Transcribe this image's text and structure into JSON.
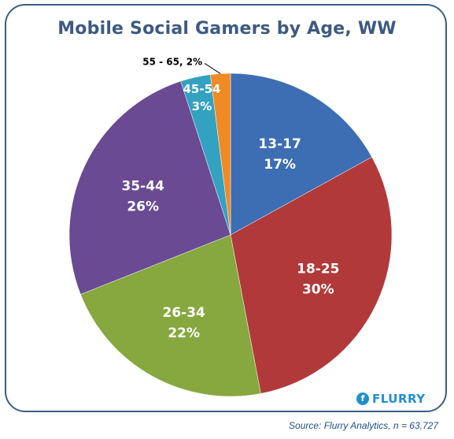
{
  "chart_data": {
    "type": "pie",
    "title": "Mobile Social Gamers by Age, WW",
    "slices": [
      {
        "category": "13-17",
        "value": 17,
        "value_label": "17%",
        "color": "#3d6eb4"
      },
      {
        "category": "18-25",
        "value": 30,
        "value_label": "30%",
        "color": "#b2393a"
      },
      {
        "category": "26-34",
        "value": 22,
        "value_label": "22%",
        "color": "#86a83e"
      },
      {
        "category": "35-44",
        "value": 26,
        "value_label": "26%",
        "color": "#6a4a93"
      },
      {
        "category": "45-54",
        "value": 3,
        "value_label": "3%",
        "color": "#33a2c1"
      },
      {
        "category": "55 - 65",
        "value": 2,
        "value_label": "55 - 65, 2%",
        "color": "#f08a24"
      }
    ],
    "legend": "none"
  },
  "logo": {
    "mark": "f",
    "text": "FLURRY"
  },
  "source": "Source: Flurry Analytics, n = 63,727"
}
